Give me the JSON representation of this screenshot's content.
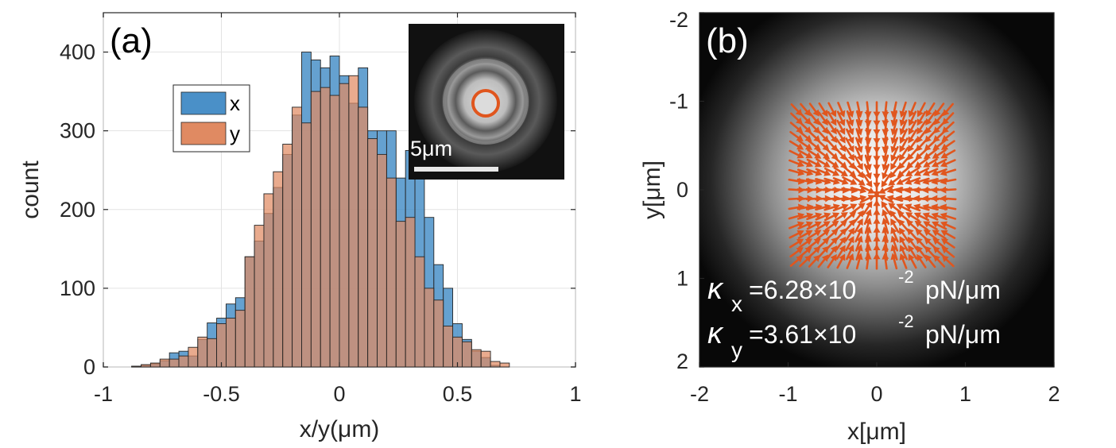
{
  "colors": {
    "series_x": "#4a90c8",
    "series_y": "#e08a62",
    "arrow": "#e0561e",
    "grid": "#e3e3e3",
    "axis": "#262626"
  },
  "chart_data": [
    {
      "panel": "(a)",
      "type": "bar",
      "subtype": "overlaid-histogram",
      "xlabel": "x/y(μm)",
      "ylabel": "count",
      "xlim": [
        -1,
        1
      ],
      "ylim": [
        0,
        450
      ],
      "xticks": [
        "-1",
        "-0.5",
        "0",
        "0.5",
        "1"
      ],
      "yticks": [
        "0",
        "100",
        "200",
        "300",
        "400"
      ],
      "xtick_values": [
        -1,
        -0.5,
        0,
        0.5,
        1
      ],
      "ytick_values": [
        0,
        100,
        200,
        300,
        400
      ],
      "grid": true,
      "bins": {
        "start": -0.96,
        "width": 0.04
      },
      "legend_position": "upper-left",
      "series": [
        {
          "name": "x",
          "color": "#4a90c8",
          "values": [
            0,
            0,
            1,
            2,
            4,
            8,
            18,
            20,
            14,
            35,
            56,
            62,
            80,
            88,
            140,
            160,
            195,
            228,
            270,
            320,
            400,
            390,
            380,
            395,
            370,
            335,
            380,
            300,
            300,
            300,
            240,
            275,
            300,
            190,
            130,
            100,
            55,
            35,
            20,
            12,
            2,
            0
          ]
        },
        {
          "name": "y",
          "color": "#e08a62",
          "values": [
            0,
            0,
            1,
            3,
            5,
            10,
            10,
            14,
            25,
            38,
            36,
            55,
            62,
            72,
            140,
            180,
            220,
            248,
            283,
            330,
            310,
            350,
            355,
            345,
            360,
            370,
            330,
            290,
            270,
            240,
            185,
            190,
            140,
            100,
            85,
            52,
            38,
            32,
            22,
            20,
            7,
            5
          ]
        }
      ],
      "inset": {
        "scalebar_label": "5μm"
      }
    },
    {
      "panel": "(b)",
      "type": "heatmap",
      "subtype": "intensity-image-with-force-field",
      "xlabel": "x[μm]",
      "ylabel": "y[μm]",
      "xlim": [
        -2,
        2
      ],
      "ylim": [
        -2,
        2
      ],
      "y_direction": "reversed",
      "xticks": [
        "-2",
        "-1",
        "0",
        "1",
        "2"
      ],
      "yticks": [
        "-2",
        "-1",
        "0",
        "1",
        "2"
      ],
      "xtick_values": [
        -2,
        -1,
        0,
        1,
        2
      ],
      "ytick_values": [
        -2,
        -1,
        0,
        1,
        2
      ],
      "quiver": {
        "x_range": [
          -0.9,
          0.8
        ],
        "y_range": [
          -0.9,
          0.8
        ],
        "grid_step": 0.1,
        "center": [
          0,
          0.05
        ]
      },
      "annotations": [
        {
          "symbol": "κ",
          "subscript": "x",
          "text": "=6.28×10",
          "exponent": "-2",
          "unit": "pN/μm"
        },
        {
          "symbol": "κ",
          "subscript": "y",
          "text": "=3.61×10",
          "exponent": "-2",
          "unit": "pN/μm"
        }
      ]
    }
  ]
}
